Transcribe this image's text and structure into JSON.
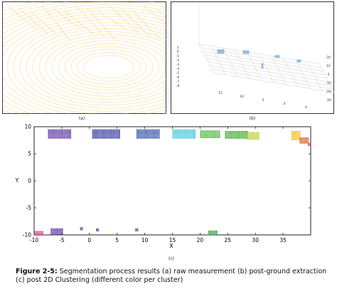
{
  "panels": {
    "a": {
      "label": "(a)"
    },
    "b": {
      "label": "(b)",
      "tick_labels": [
        "1",
        "0",
        "-1",
        "-2",
        "-3",
        "-4",
        "-5",
        "-6",
        "-7",
        "-8",
        "20",
        "10",
        "0",
        "-10",
        "-20",
        "-30",
        "15",
        "10",
        "5",
        "0",
        "-5"
      ]
    },
    "c": {
      "label": "(c)"
    }
  },
  "caption": {
    "prefix": "Figure 2-5:",
    "text": "Segmentation process results (a) raw measurement (b) post-ground extraction (c) post 2D Clustering (different color per cluster)"
  },
  "chart_data": {
    "type": "scatter",
    "xlabel": "X",
    "ylabel": "Y",
    "xlim": [
      -10,
      40
    ],
    "ylim": [
      -10,
      10
    ],
    "xticks": [
      -10,
      -5,
      0,
      5,
      10,
      15,
      20,
      25,
      30,
      35
    ],
    "yticks": [
      -10,
      -5,
      0,
      5,
      10
    ],
    "grid": false,
    "clusters": [
      {
        "color": "#5b3aa6",
        "x": [
          -7.5,
          -3.5
        ],
        "y": [
          8.0,
          9.5
        ]
      },
      {
        "color": "#3b3d9e",
        "x": [
          0.5,
          5.5
        ],
        "y": [
          8.0,
          9.5
        ]
      },
      {
        "color": "#3954a6",
        "x": [
          8.5,
          12.5
        ],
        "y": [
          8.0,
          9.5
        ]
      },
      {
        "color": "#47c7d6",
        "x": [
          15.0,
          19.0
        ],
        "y": [
          8.0,
          9.5
        ]
      },
      {
        "color": "#55b848",
        "x": [
          20.0,
          23.5
        ],
        "y": [
          8.0,
          9.3
        ]
      },
      {
        "color": "#4aa83a",
        "x": [
          24.5,
          28.5
        ],
        "y": [
          7.8,
          9.2
        ]
      },
      {
        "color": "#b7d33a",
        "x": [
          28.5,
          30.5
        ],
        "y": [
          7.8,
          9.0
        ]
      },
      {
        "color": "#f3c01e",
        "x": [
          36.5,
          38.0
        ],
        "y": [
          7.5,
          9.2
        ]
      },
      {
        "color": "#e05a2b",
        "x": [
          38.0,
          39.5
        ],
        "y": [
          7.0,
          8.0
        ]
      },
      {
        "color": "#d93a3a",
        "x": [
          39.5,
          40.0
        ],
        "y": [
          6.6,
          7.0
        ]
      },
      {
        "color": "#d43a8a",
        "x": [
          -10.0,
          -8.5
        ],
        "y": [
          -10.0,
          -9.3
        ]
      },
      {
        "color": "#5a3ab0",
        "x": [
          -7.0,
          -4.8
        ],
        "y": [
          -9.8,
          -8.8
        ]
      },
      {
        "color": "#3b4aa8",
        "x": [
          -1.7,
          -1.3
        ],
        "y": [
          -9.0,
          -8.6
        ]
      },
      {
        "color": "#3b4aa8",
        "x": [
          1.2,
          1.6
        ],
        "y": [
          -9.2,
          -8.8
        ]
      },
      {
        "color": "#3b4aa8",
        "x": [
          8.3,
          8.7
        ],
        "y": [
          -9.2,
          -8.8
        ]
      },
      {
        "color": "#3b9e43",
        "x": [
          21.5,
          23.0
        ],
        "y": [
          -10.0,
          -9.2
        ]
      }
    ]
  }
}
